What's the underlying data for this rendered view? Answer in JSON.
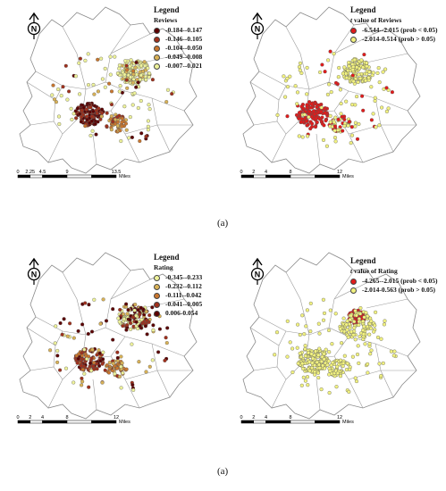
{
  "captions": [
    "(a)",
    "(a)"
  ],
  "maps": [
    {
      "legend_title": "Legend",
      "legend_subtitle_italic": "",
      "legend_subtitle": "Reviews",
      "classes": [
        {
          "label": "-0.184--0.147",
          "color": "#5c0000"
        },
        {
          "label": "-0.146--0.105",
          "color": "#a0301c"
        },
        {
          "label": "-0.104--0.050",
          "color": "#c9762e"
        },
        {
          "label": "-0.049--0.008",
          "color": "#d9b257"
        },
        {
          "label": "-0.007--0.021",
          "color": "#eef29a"
        }
      ],
      "scale": {
        "ticks": [
          "0",
          "2.25",
          "4.5",
          "9",
          "13.5"
        ],
        "unit": "Miles"
      }
    },
    {
      "legend_title": "Legend",
      "legend_subtitle_italic": "t",
      "legend_subtitle": " value of Reviews",
      "classes": [
        {
          "label": "-6.544--2.015 (prob < 0.05)",
          "color": "#e21b1b"
        },
        {
          "label": "-2.014-0.514 (prob > 0.05)",
          "color": "#f2f280"
        }
      ],
      "scale": {
        "ticks": [
          "0",
          "2",
          "4",
          "8",
          "12"
        ],
        "unit": "Miles"
      }
    },
    {
      "legend_title": "Legend",
      "legend_subtitle_italic": "",
      "legend_subtitle": "Rating",
      "classes": [
        {
          "label": "-0.345--0.233",
          "color": "#eef29a"
        },
        {
          "label": "-0.232--0.112",
          "color": "#d9b257"
        },
        {
          "label": "-0.111--0.042",
          "color": "#c9762e"
        },
        {
          "label": "-0.041--0.005",
          "color": "#a0301c"
        },
        {
          "label": "0.006-0.054",
          "color": "#5c0000"
        }
      ],
      "scale": {
        "ticks": [
          "0",
          "2",
          "4",
          "8",
          "12"
        ],
        "unit": "Miles"
      }
    },
    {
      "legend_title": "Legend",
      "legend_subtitle_italic": "t",
      "legend_subtitle": " value of Rating",
      "classes": [
        {
          "label": "-4.265--2.015 (prob < 0.05)",
          "color": "#e21b1b"
        },
        {
          "label": "-2.014-0.563 (prob > 0.05)",
          "color": "#f2f280"
        }
      ],
      "scale": {
        "ticks": [
          "0",
          "2",
          "4",
          "8",
          "12"
        ],
        "unit": "Miles"
      }
    }
  ],
  "north_arrow_letter": "N"
}
